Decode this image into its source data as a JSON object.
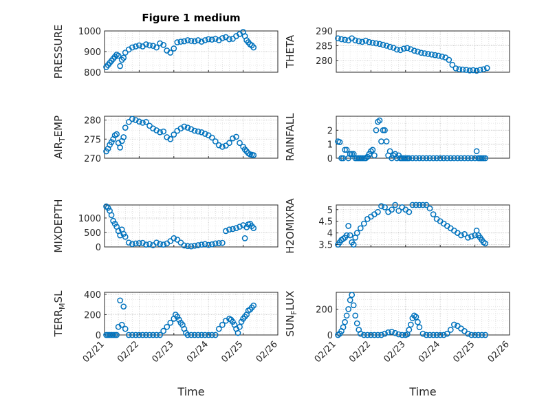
{
  "figure": {
    "title": "Figure 1 medium",
    "xlabel": "Time",
    "marker_color": "#0072BD",
    "x_ticks": [
      "02/21",
      "02/22",
      "02/23",
      "02/24",
      "02/25",
      "02/26"
    ]
  },
  "chart_data": [
    {
      "type": "scatter",
      "title": "Figure 1 medium",
      "ylabel": "PRESSURE",
      "ylim": [
        800,
        1000
      ],
      "yticks": [
        "800",
        "900",
        "1000"
      ],
      "grid": true,
      "x": [
        0.05,
        0.1,
        0.15,
        0.2,
        0.25,
        0.3,
        0.35,
        0.4,
        0.45,
        0.5,
        0.55,
        0.6,
        0.7,
        0.8,
        0.9,
        1.0,
        1.1,
        1.2,
        1.3,
        1.4,
        1.5,
        1.6,
        1.7,
        1.8,
        1.9,
        2.0,
        2.1,
        2.2,
        2.3,
        2.4,
        2.5,
        2.6,
        2.7,
        2.8,
        2.9,
        3.0,
        3.1,
        3.2,
        3.3,
        3.4,
        3.5,
        3.6,
        3.7,
        3.8,
        3.9,
        4.0,
        4.05,
        4.1,
        4.15,
        4.2,
        4.25,
        4.3
      ],
      "values": [
        825,
        835,
        845,
        855,
        865,
        875,
        885,
        880,
        830,
        860,
        870,
        895,
        910,
        920,
        925,
        930,
        925,
        935,
        930,
        928,
        920,
        940,
        932,
        905,
        895,
        915,
        945,
        948,
        950,
        955,
        952,
        950,
        955,
        948,
        955,
        960,
        958,
        962,
        955,
        965,
        970,
        960,
        962,
        975,
        985,
        995,
        975,
        955,
        945,
        935,
        930,
        920
      ]
    },
    {
      "type": "scatter",
      "ylabel": "THETA",
      "ylim": [
        276,
        290
      ],
      "yticks": [
        "280",
        "285",
        "290"
      ],
      "grid": true,
      "x": [
        0.05,
        0.15,
        0.25,
        0.35,
        0.45,
        0.55,
        0.65,
        0.75,
        0.85,
        0.95,
        1.05,
        1.15,
        1.25,
        1.35,
        1.45,
        1.55,
        1.65,
        1.75,
        1.85,
        1.95,
        2.05,
        2.15,
        2.25,
        2.35,
        2.45,
        2.55,
        2.65,
        2.75,
        2.85,
        2.95,
        3.05,
        3.15,
        3.25,
        3.35,
        3.45,
        3.55,
        3.65,
        3.75,
        3.85,
        3.95,
        4.05,
        4.15,
        4.25,
        4.35
      ],
      "values": [
        287.5,
        287.2,
        287,
        286.8,
        287.5,
        286.8,
        286.5,
        286.3,
        286.7,
        286.2,
        286,
        285.8,
        285.6,
        285.3,
        285,
        284.6,
        284.3,
        283.7,
        283.5,
        284,
        284.2,
        283.8,
        283.3,
        283,
        282.6,
        282.4,
        282.2,
        282,
        281.8,
        281.6,
        281.3,
        281,
        280.2,
        278.5,
        277.3,
        277,
        276.9,
        276.8,
        276.6,
        276.7,
        276.5,
        276.8,
        277,
        277.4
      ]
    },
    {
      "type": "scatter",
      "ylabel": "AIR_TEMP",
      "ylim": [
        270,
        281
      ],
      "yticks": [
        "270",
        "275",
        "280"
      ],
      "grid": true,
      "x": [
        0.05,
        0.1,
        0.15,
        0.2,
        0.25,
        0.3,
        0.35,
        0.4,
        0.45,
        0.5,
        0.55,
        0.6,
        0.7,
        0.8,
        0.9,
        1.0,
        1.1,
        1.2,
        1.3,
        1.4,
        1.5,
        1.6,
        1.7,
        1.8,
        1.9,
        2.0,
        2.1,
        2.2,
        2.3,
        2.4,
        2.5,
        2.6,
        2.7,
        2.8,
        2.9,
        3.0,
        3.1,
        3.2,
        3.3,
        3.4,
        3.5,
        3.6,
        3.7,
        3.8,
        3.9,
        4.0,
        4.05,
        4.1,
        4.15,
        4.2,
        4.25,
        4.3
      ],
      "values": [
        271.8,
        272.5,
        273.5,
        274.2,
        275,
        276,
        276.3,
        274,
        272.8,
        274.5,
        275.5,
        278,
        279.5,
        280.3,
        280,
        279.6,
        279.3,
        279.5,
        278.5,
        277.8,
        277.3,
        276.8,
        277,
        275.5,
        275,
        276.2,
        277.2,
        277.8,
        278.3,
        278,
        277.6,
        277.2,
        277,
        276.8,
        276.4,
        276,
        275.4,
        274.4,
        273.4,
        273,
        273.3,
        274,
        275.2,
        275.6,
        274,
        273,
        272.3,
        271.8,
        271.3,
        271,
        270.9,
        270.8
      ]
    },
    {
      "type": "scatter",
      "ylabel": "RAINFALL",
      "ylim": [
        0,
        3
      ],
      "yticks": [
        "0",
        "1",
        "2"
      ],
      "grid": true,
      "x": [
        0.05,
        0.1,
        0.15,
        0.2,
        0.25,
        0.3,
        0.35,
        0.4,
        0.45,
        0.5,
        0.55,
        0.6,
        0.65,
        0.7,
        0.75,
        0.8,
        0.85,
        0.9,
        0.95,
        1.0,
        1.05,
        1.1,
        1.15,
        1.2,
        1.25,
        1.3,
        1.35,
        1.4,
        1.45,
        1.5,
        1.55,
        1.6,
        1.65,
        1.7,
        1.75,
        1.8,
        1.85,
        1.9,
        1.95,
        2.0,
        2.05,
        2.1,
        2.2,
        2.3,
        2.4,
        2.5,
        2.6,
        2.7,
        2.8,
        2.9,
        3.0,
        3.1,
        3.2,
        3.3,
        3.4,
        3.5,
        3.6,
        3.7,
        3.8,
        3.9,
        4.0,
        4.05,
        4.1,
        4.15,
        4.2,
        4.25,
        4.3
      ],
      "values": [
        1.2,
        1.15,
        0,
        0,
        0.6,
        0.6,
        0,
        0.3,
        0.3,
        0.3,
        0,
        0,
        0,
        0,
        0,
        0,
        0,
        0.1,
        0.3,
        0.5,
        0.6,
        0.2,
        2,
        2.6,
        2.7,
        1.2,
        2,
        2,
        1.2,
        0.2,
        0.5,
        0,
        0.2,
        0.3,
        0,
        0.2,
        0,
        0,
        0,
        0,
        0,
        0,
        0,
        0,
        0,
        0,
        0,
        0,
        0,
        0,
        0,
        0,
        0,
        0,
        0,
        0,
        0,
        0,
        0,
        0,
        0,
        0.5,
        0,
        0,
        0,
        0,
        0
      ]
    },
    {
      "type": "scatter",
      "ylabel": "MIXDEPTH",
      "ylim": [
        0,
        1450
      ],
      "yticks": [
        "0",
        "500",
        "1000"
      ],
      "grid": true,
      "x": [
        0.05,
        0.1,
        0.15,
        0.2,
        0.25,
        0.3,
        0.35,
        0.4,
        0.45,
        0.5,
        0.55,
        0.6,
        0.7,
        0.8,
        0.9,
        1.0,
        1.1,
        1.2,
        1.3,
        1.4,
        1.5,
        1.6,
        1.7,
        1.8,
        1.9,
        2.0,
        2.1,
        2.2,
        2.3,
        2.4,
        2.5,
        2.6,
        2.7,
        2.8,
        2.9,
        3.0,
        3.1,
        3.2,
        3.3,
        3.4,
        3.5,
        3.6,
        3.7,
        3.8,
        3.9,
        4.0,
        4.05,
        4.1,
        4.15,
        4.2,
        4.25,
        4.3
      ],
      "values": [
        1400,
        1350,
        1250,
        1100,
        900,
        800,
        700,
        550,
        400,
        600,
        450,
        350,
        150,
        100,
        120,
        130,
        140,
        80,
        100,
        60,
        150,
        100,
        80,
        120,
        200,
        300,
        250,
        150,
        50,
        30,
        20,
        40,
        60,
        80,
        100,
        70,
        90,
        120,
        130,
        140,
        550,
        600,
        620,
        650,
        700,
        750,
        300,
        680,
        780,
        800,
        720,
        650
      ]
    },
    {
      "type": "scatter",
      "ylabel": "H2OMIXRA",
      "ylim": [
        3.4,
        5.2
      ],
      "yticks": [
        "3.5",
        "4",
        "4.5",
        "5"
      ],
      "grid": true,
      "x": [
        0.05,
        0.1,
        0.15,
        0.2,
        0.25,
        0.3,
        0.35,
        0.4,
        0.45,
        0.5,
        0.55,
        0.6,
        0.7,
        0.8,
        0.9,
        1.0,
        1.1,
        1.2,
        1.3,
        1.4,
        1.5,
        1.6,
        1.7,
        1.8,
        1.9,
        2.0,
        2.1,
        2.2,
        2.3,
        2.4,
        2.5,
        2.6,
        2.7,
        2.8,
        2.9,
        3.0,
        3.1,
        3.2,
        3.3,
        3.4,
        3.5,
        3.6,
        3.7,
        3.8,
        3.9,
        4.0,
        4.05,
        4.1,
        4.15,
        4.2,
        4.25,
        4.3
      ],
      "values": [
        3.5,
        3.6,
        3.7,
        3.75,
        3.8,
        3.9,
        4.3,
        3.9,
        3.6,
        3.5,
        3.8,
        4,
        4.2,
        4.4,
        4.6,
        4.7,
        4.8,
        4.9,
        5.15,
        5.1,
        4.9,
        5,
        5.2,
        4.95,
        5.1,
        5,
        4.9,
        5.2,
        5.25,
        5.3,
        5.25,
        5.2,
        5.05,
        4.8,
        4.6,
        4.5,
        4.4,
        4.3,
        4.2,
        4.1,
        4,
        3.9,
        3.95,
        3.8,
        3.85,
        3.9,
        4.1,
        3.9,
        3.8,
        3.7,
        3.6,
        3.55
      ]
    },
    {
      "type": "scatter",
      "ylabel": "TERR_MSL",
      "ylim": [
        0,
        420
      ],
      "yticks": [
        "0",
        "200",
        "400"
      ],
      "grid": true,
      "x": [
        0.05,
        0.1,
        0.15,
        0.2,
        0.25,
        0.3,
        0.35,
        0.4,
        0.45,
        0.5,
        0.55,
        0.6,
        0.7,
        0.8,
        0.9,
        1.0,
        1.1,
        1.2,
        1.3,
        1.4,
        1.5,
        1.6,
        1.7,
        1.8,
        1.9,
        2.0,
        2.05,
        2.1,
        2.15,
        2.2,
        2.25,
        2.3,
        2.35,
        2.4,
        2.5,
        2.6,
        2.7,
        2.8,
        2.9,
        3.0,
        3.1,
        3.2,
        3.3,
        3.4,
        3.5,
        3.6,
        3.65,
        3.7,
        3.75,
        3.8,
        3.85,
        3.9,
        3.95,
        4.0,
        4.05,
        4.1,
        4.15,
        4.2,
        4.25,
        4.3
      ],
      "values": [
        0,
        0,
        0,
        0,
        0,
        0,
        0,
        80,
        340,
        100,
        280,
        60,
        0,
        0,
        0,
        0,
        0,
        0,
        0,
        0,
        0,
        0,
        40,
        80,
        120,
        160,
        200,
        180,
        150,
        120,
        100,
        60,
        20,
        0,
        0,
        0,
        0,
        0,
        0,
        0,
        0,
        0,
        60,
        100,
        140,
        160,
        150,
        130,
        100,
        60,
        20,
        80,
        130,
        160,
        180,
        200,
        240,
        250,
        270,
        290
      ]
    },
    {
      "type": "scatter",
      "ylabel": "SUN_FLUX",
      "ylim": [
        0,
        330
      ],
      "yticks": [
        "0",
        "200"
      ],
      "grid": true,
      "x": [
        0.05,
        0.1,
        0.15,
        0.2,
        0.25,
        0.3,
        0.35,
        0.4,
        0.45,
        0.5,
        0.55,
        0.6,
        0.65,
        0.7,
        0.8,
        0.9,
        1.0,
        1.1,
        1.2,
        1.3,
        1.4,
        1.5,
        1.6,
        1.7,
        1.8,
        1.9,
        2.0,
        2.05,
        2.1,
        2.15,
        2.2,
        2.25,
        2.3,
        2.35,
        2.4,
        2.5,
        2.6,
        2.7,
        2.8,
        2.9,
        3.0,
        3.1,
        3.2,
        3.3,
        3.4,
        3.5,
        3.6,
        3.7,
        3.8,
        3.9,
        4.0,
        4.1,
        4.2,
        4.3
      ],
      "values": [
        0,
        10,
        30,
        60,
        100,
        150,
        200,
        270,
        310,
        230,
        150,
        90,
        40,
        10,
        0,
        0,
        0,
        0,
        0,
        0,
        10,
        20,
        25,
        15,
        5,
        0,
        0,
        5,
        40,
        80,
        130,
        150,
        140,
        100,
        60,
        10,
        0,
        0,
        0,
        0,
        0,
        0,
        10,
        40,
        80,
        70,
        50,
        30,
        10,
        0,
        0,
        0,
        0,
        0
      ]
    }
  ]
}
